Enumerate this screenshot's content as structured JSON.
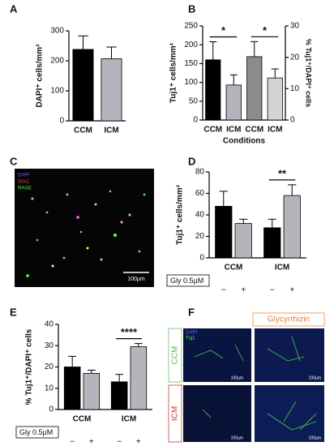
{
  "chart_data": [
    {
      "panel": "A",
      "type": "bar",
      "ylabel": "DAPI⁺ cells/mm²",
      "categories": [
        "CCM",
        "ICM"
      ],
      "series": [
        {
          "colors": [
            "#000000",
            "#b4b4bc"
          ],
          "values": [
            238,
            207
          ],
          "errors": [
            45,
            39
          ]
        }
      ],
      "ylim": [
        0,
        300
      ],
      "yticks": [
        0,
        100,
        200,
        300
      ]
    },
    {
      "panel": "B",
      "type": "bar",
      "ylabel": "Tuj1⁺ cells/mm²",
      "y2label": "% Tuj1⁺/DAPI⁺ cells",
      "xlabel": "Conditions",
      "categories": [
        "CCM",
        "ICM",
        "CCM",
        "ICM"
      ],
      "series": [
        {
          "colors": [
            "#000000",
            "#b4b4bc",
            null,
            null
          ],
          "values": [
            160,
            93,
            null,
            null
          ],
          "errors": [
            48,
            27,
            null,
            null
          ]
        },
        {
          "axis": "y2",
          "colors": [
            null,
            null,
            "#8c8c8c",
            "#d4d4d4"
          ],
          "values": [
            null,
            null,
            20.2,
            13.4
          ],
          "errors": [
            null,
            null,
            4.8,
            2.9
          ]
        }
      ],
      "ylim": [
        0,
        250
      ],
      "yticks": [
        0,
        50,
        100,
        150,
        200,
        250
      ],
      "y2lim": [
        0,
        30
      ],
      "y2ticks": [
        0,
        10,
        20,
        30
      ],
      "significance": [
        {
          "label": "*",
          "from": 0,
          "to": 1
        },
        {
          "label": "*",
          "from": 2,
          "to": 3
        }
      ]
    },
    {
      "panel": "D",
      "type": "grouped_bar",
      "ylabel": "Tuj1⁺ cells/mm²",
      "categories": [
        "CCM",
        "ICM"
      ],
      "treatment": "Gly 0.5µM",
      "series": [
        {
          "name": "−",
          "color": "#000000",
          "values": [
            48,
            28
          ],
          "errors": [
            14,
            8
          ]
        },
        {
          "name": "+",
          "color": "#b4b4bc",
          "values": [
            32,
            58
          ],
          "errors": [
            4,
            10
          ]
        }
      ],
      "ylim": [
        0,
        80
      ],
      "yticks": [
        0,
        20,
        40,
        60,
        80
      ],
      "significance": [
        {
          "label": "**",
          "category": 1
        }
      ]
    },
    {
      "panel": "E",
      "type": "grouped_bar",
      "ylabel": "% Tuj1⁺/DAPI⁺ cells",
      "categories": [
        "CCM",
        "ICM"
      ],
      "treatment": "Gly 0.5µM",
      "series": [
        {
          "name": "−",
          "color": "#000000",
          "values": [
            20,
            13
          ],
          "errors": [
            5,
            3.5
          ]
        },
        {
          "name": "+",
          "color": "#b4b4bc",
          "values": [
            17,
            29.5
          ],
          "errors": [
            1.5,
            1.5
          ]
        }
      ],
      "ylim": [
        0,
        40
      ],
      "yticks": [
        0,
        10,
        20,
        30,
        40
      ],
      "significance": [
        {
          "label": "****",
          "category": 1
        }
      ]
    }
  ],
  "images": [
    {
      "panel": "C",
      "legend": [
        {
          "text": "DAPI",
          "color": "#5a6cff"
        },
        {
          "text": "Sox2",
          "color": "#ff3a3a"
        },
        {
          "text": "RAGE",
          "color": "#3aff3a"
        }
      ],
      "scale_bar": "100µm"
    },
    {
      "panel": "F",
      "header": "Glycyrrhizin",
      "rows": [
        "CCM",
        "ICM"
      ],
      "legend": [
        {
          "text": "DAPI",
          "color": "#5a6cff"
        },
        {
          "text": "Tuj1",
          "color": "#3aff3a"
        }
      ],
      "scale_bar": "100µm"
    }
  ]
}
